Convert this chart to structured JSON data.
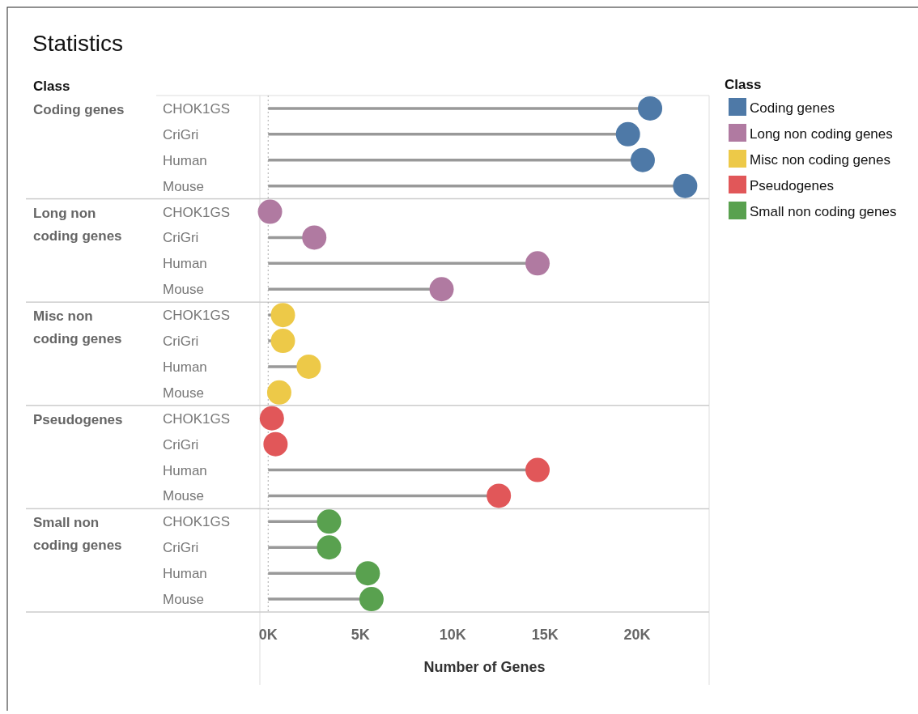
{
  "chart_data": {
    "type": "lollipop",
    "title": "Statistics",
    "orientation": "horizontal",
    "xlabel": "Number of Genes",
    "legend_title": "Class",
    "legend": "top right",
    "grid": "y",
    "marker": "circle",
    "categories": [
      "CHOK1GS",
      "CriGri",
      "Human",
      "Mouse",
      "CHOK1GS",
      "CriGri",
      "Human",
      "Mouse",
      "CHOK1GS",
      "CriGri",
      "Human",
      "Mouse",
      "CHOK1GS",
      "CriGri",
      "Human",
      "Mouse",
      "CHOK1GS",
      "CriGri",
      "Human",
      "Mouse"
    ],
    "series": [
      {
        "name": "Coding genes",
        "color": "#4e79a7",
        "values": [
          20700,
          19500,
          20300,
          22600,
          null,
          null,
          null,
          null,
          null,
          null,
          null,
          null,
          null,
          null,
          null,
          null,
          null,
          null,
          null,
          null
        ]
      },
      {
        "name": "Long non coding genes",
        "color": "#b07aa1",
        "values": [
          null,
          null,
          null,
          null,
          100,
          2500,
          14600,
          9400,
          null,
          null,
          null,
          null,
          null,
          null,
          null,
          null,
          null,
          null,
          null,
          null
        ]
      },
      {
        "name": "Misc non coding genes",
        "color": "#edc948",
        "values": [
          null,
          null,
          null,
          null,
          null,
          null,
          null,
          null,
          800,
          800,
          2200,
          600,
          null,
          null,
          null,
          null,
          null,
          null,
          null,
          null
        ]
      },
      {
        "name": "Pseudogenes",
        "color": "#e15759",
        "values": [
          null,
          null,
          null,
          null,
          null,
          null,
          null,
          null,
          null,
          null,
          null,
          null,
          200,
          400,
          14600,
          12500,
          null,
          null,
          null,
          null
        ]
      },
      {
        "name": "Small non coding genes",
        "color": "#59a14f",
        "values": [
          null,
          null,
          null,
          null,
          null,
          null,
          null,
          null,
          null,
          null,
          null,
          null,
          null,
          null,
          null,
          null,
          3300,
          3300,
          5400,
          5600
        ]
      }
    ],
    "xlim": [
      -450,
      23900
    ],
    "xticks": [
      {
        "value": 0,
        "label": "0K"
      },
      {
        "value": 5000,
        "label": "5K"
      },
      {
        "value": 10000,
        "label": "10K"
      },
      {
        "value": 15000,
        "label": "15K"
      },
      {
        "value": 20000,
        "label": "20K"
      }
    ],
    "ref_lines": [
      {
        "axis": "x",
        "value": 0,
        "label": null,
        "color": "#aaaaaa",
        "line_style": "dotted"
      }
    ]
  }
}
